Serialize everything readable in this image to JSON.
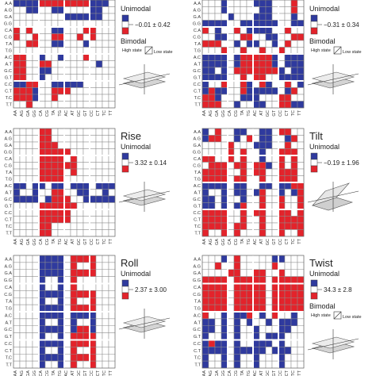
{
  "colors": {
    "blue": "#2f3a9e",
    "red": "#e3232b",
    "empty": "#ffffff",
    "grid": "#8c8c8c"
  },
  "row_labels": [
    "A.A",
    "A.G",
    "G.A",
    "G.G",
    "C.A",
    "C.G",
    "T.A",
    "T.G",
    "A.C",
    "A.T",
    "G.C",
    "G.T",
    "C.C",
    "C.T",
    "T.C",
    "T.T"
  ],
  "col_labels": [
    "AA",
    "AG",
    "GA",
    "GG",
    "CA",
    "CG",
    "TA",
    "TG",
    "AC",
    "AT",
    "GC",
    "GT",
    "CC",
    "CT",
    "TC",
    "TT"
  ],
  "panels": [
    {
      "id": "shift",
      "title": "",
      "mode": "Unimodal",
      "value": "−0.01 ± 0.42",
      "bimodal": "Bimodal",
      "high_state": "High state",
      "low_state": "Low state",
      "icon": "plate-icon",
      "rows": [
        "BBBBRRRRRRRRBBB.",
        "..BB..BB....BB..",
        "........BBBBBB..",
        "................",
        "R.R...BB...RR...",
        "R..R..RR..R.R...",
        "..RR..BB...B....",
        "................",
        "RR..B..B...R....",
        "RR..RR.......B..",
        "RR..BB..........",
        "RR..B...........",
        "BBRR..BBBBB.....",
        "RRRB..RRR.......",
        "RRRB..R.........",
        "..R............."
      ]
    },
    {
      "id": "tilt-top",
      "title": "",
      "mode": "Unimodal",
      "value": "−0.31 ± 0.34",
      "bimodal": "Bimodal",
      "high_state": "High state",
      "low_state": "Low state",
      "icon": "plate-icon",
      "rows": [
        "...B....BBB...R.",
        "...B.....BB...R.",
        "....B...BBB...B.",
        "BBBB..BBBBBB..BB",
        "R.B..R.BBBB..R..",
        "..BB..RR..BB..RR",
        "RRR..B.BB..B.R..",
        "...R..R..R..R...",
        "BBBB.BRRRRRB.BBB",
        "BBBB.BRRRRRB.BBB",
        "BB.B.RRRRRRRB.BB",
        "BBBB..R.RR..BBBB",
        "B..R..RB.RB..R.B",
        "BRBB..RBBBBB.BR.",
        "RRB...BBB...RR..",
        "RRR..B..BB..RRBB"
      ]
    },
    {
      "id": "rise",
      "title": "Rise",
      "mode": "Unimodal",
      "value": "3.32 ± 0.14",
      "icon": "plate-icon",
      "rows": [
        "....RR..........",
        "....RR..........",
        "....RRR.........",
        "....RRRRR.......",
        "....RRRR.R......",
        "....RRRRRR......",
        "....RRRR.R......",
        "....RRRR........",
        "BB.BB.BB.BBB.BBB",
        "B..B..RR..BB..B.",
        "BBBB.BRRR..BBBBB",
        "....RRRRRR......",
        "....RRRRR.......",
        "....RRRRR.......",
        "....RR..........",
        "....RR.........."
      ]
    },
    {
      "id": "tilt",
      "title": "Tilt",
      "mode": "Unimodal",
      "value": "−0.19 ± 1.96",
      "icon": "wedge-icon",
      "rows": [
        "B.R..BB..BB.RR..",
        "BRR..B.R.BB..BR.",
        "....R...BBB..R..",
        "....R.R..B..RRR.",
        "RR..R.R..B..R.R.",
        ".RRR.RR.RRB.R.R.",
        "RRRR..R.RR..RRR.",
        "RRRR.RR..R..RRR.",
        "BBBB.BB..BB.BBRR",
        "B..B.BB.BR..B.BR",
        "BB.B..B..R..R..R",
        "BB.B.BR..R..R..R",
        "RRRR..R.RR..RR.R",
        "RRRR..R..R..RRRR",
        "RRRR.RR..R..RRRR",
        "R..R.R...R..R..R"
      ]
    },
    {
      "id": "roll",
      "title": "Roll",
      "mode": "Unimodal",
      "value": "2.37 ± 3.00",
      "icon": "plate-icon",
      "rows": [
        "....BBBB.RRRR...",
        "....BBBB.R..R...",
        "....BBBB.RRRR...",
        "....B..B.R......",
        "....B..B.R......",
        "....BBBB.RRRR...",
        "....B..B.R..R...",
        "....BBBB.RRRR...",
        "....BBBB.BBBB...",
        "....B..B.B..B...",
        "....BBBB.BRRB...",
        "....B..B.RRRR...",
        "....BBBB.RRRR...",
        "....B..B.R..R...",
        "....BBBB.RRRR...",
        "....B..B.R..R..."
      ]
    },
    {
      "id": "twist",
      "title": "Twist",
      "mode": "Unimodal",
      "value": "34.3 ± 2.8",
      "bimodal": "Bimodal",
      "high_state": "High state",
      "low_state": "Low state",
      "icon": "plate-icon",
      "rows": [
        "...B.R.....BB...",
        "..R..R.....R....",
        "....RR..RR..R...",
        "RRRR.RRRRR.RRRRR",
        "RRRR.RRRRR.RRRRR",
        "RRRR.RRRRR.RRRRR",
        "RRRR.RRRRR.RRRRR",
        "RRRR.RRRRR.RRRRR",
        "R..B.BBR.B.R..B.",
        "BB.B.B.B..B.BBB.",
        "BB.B.B..B...BB..",
        "B..B.B..B.BBB...",
        "BRBB.B..BBB.B...",
        "BBBB.BBBBB.BBB..",
        "B..B.B..B...B...",
        "B..B.B..B...B..."
      ]
    }
  ]
}
